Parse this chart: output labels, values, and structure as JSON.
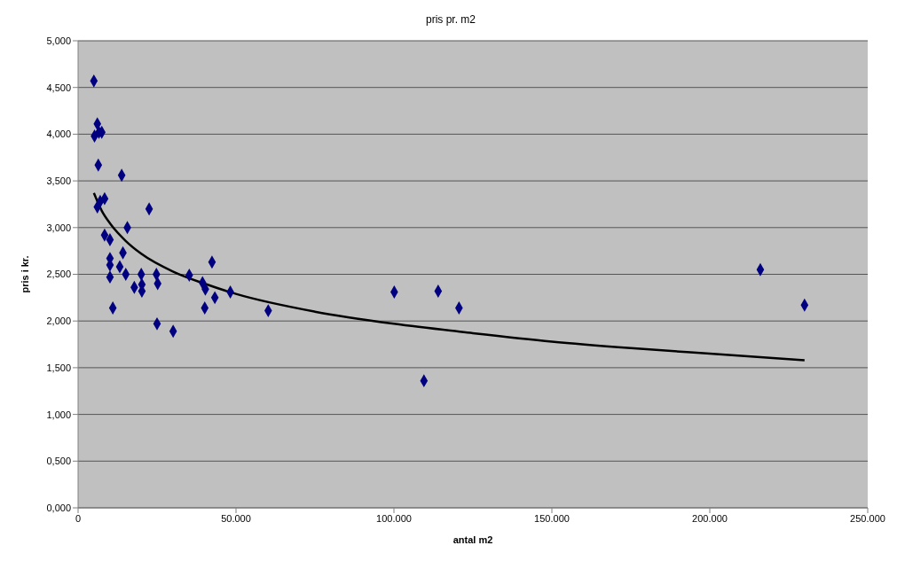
{
  "chart_data": {
    "type": "scatter",
    "title": "pris pr. m2",
    "xlabel": "antal m2",
    "ylabel": "pris i kr.",
    "xlim": [
      0,
      250000
    ],
    "xticks": [
      0,
      {
        "value": 50000,
        "label": "50.000"
      },
      {
        "value": 100000,
        "label": "100.000"
      },
      {
        "value": 150000,
        "label": "150.000"
      },
      {
        "value": 200000,
        "label": "200.000"
      },
      {
        "value": 250000,
        "label": "250.000"
      }
    ],
    "ylim": [
      0,
      5
    ],
    "yticks": [
      {
        "value": 0,
        "label": "0,000"
      },
      {
        "value": 0.5,
        "label": "0,500"
      },
      {
        "value": 1,
        "label": "1,000"
      },
      {
        "value": 1.5,
        "label": "1,500"
      },
      {
        "value": 2,
        "label": "2,000"
      },
      {
        "value": 2.5,
        "label": "2,500"
      },
      {
        "value": 3,
        "label": "3,000"
      },
      {
        "value": 3.5,
        "label": "3,500"
      },
      {
        "value": 4,
        "label": "4,000"
      },
      {
        "value": 4.5,
        "label": "4,500"
      },
      {
        "value": 5,
        "label": "5,000"
      }
    ],
    "grid": "y",
    "series": [
      {
        "color": "#000080",
        "marker": "diamond",
        "x": [
          5000,
          6100,
          5200,
          6600,
          7500,
          6400,
          13800,
          8400,
          7000,
          6100,
          22500,
          15600,
          8400,
          10100,
          14200,
          10100,
          10100,
          13200,
          10100,
          15100,
          20000,
          24800,
          17800,
          20200,
          20200,
          25200,
          11000,
          25000,
          30100,
          35200,
          42400,
          39400,
          40300,
          40100,
          43300,
          48200,
          60200,
          100100,
          114000,
          120600,
          109500,
          216000,
          230000
        ],
        "values": [
          4.57,
          4.11,
          3.98,
          4.02,
          4.02,
          3.67,
          3.56,
          3.31,
          3.28,
          3.22,
          3.2,
          3.0,
          2.92,
          2.87,
          2.73,
          2.67,
          2.6,
          2.58,
          2.47,
          2.5,
          2.5,
          2.5,
          2.36,
          2.39,
          2.32,
          2.4,
          2.14,
          1.97,
          1.89,
          2.49,
          2.63,
          2.41,
          2.34,
          2.14,
          2.25,
          2.31,
          2.11,
          2.31,
          2.32,
          2.14,
          1.36,
          2.55,
          2.17
        ]
      },
      {
        "type": "line",
        "color": "#000000",
        "marker": "none",
        "line_style": "solid",
        "x": [
          5000,
          7500,
          10000,
          15000,
          20000,
          30000,
          40000,
          50000,
          75000,
          100000,
          125000,
          150000,
          175000,
          200000,
          230000
        ],
        "values": [
          3.37,
          3.18,
          3.05,
          2.86,
          2.72,
          2.53,
          2.4,
          2.29,
          2.1,
          1.97,
          1.87,
          1.78,
          1.71,
          1.65,
          1.58
        ]
      }
    ]
  }
}
